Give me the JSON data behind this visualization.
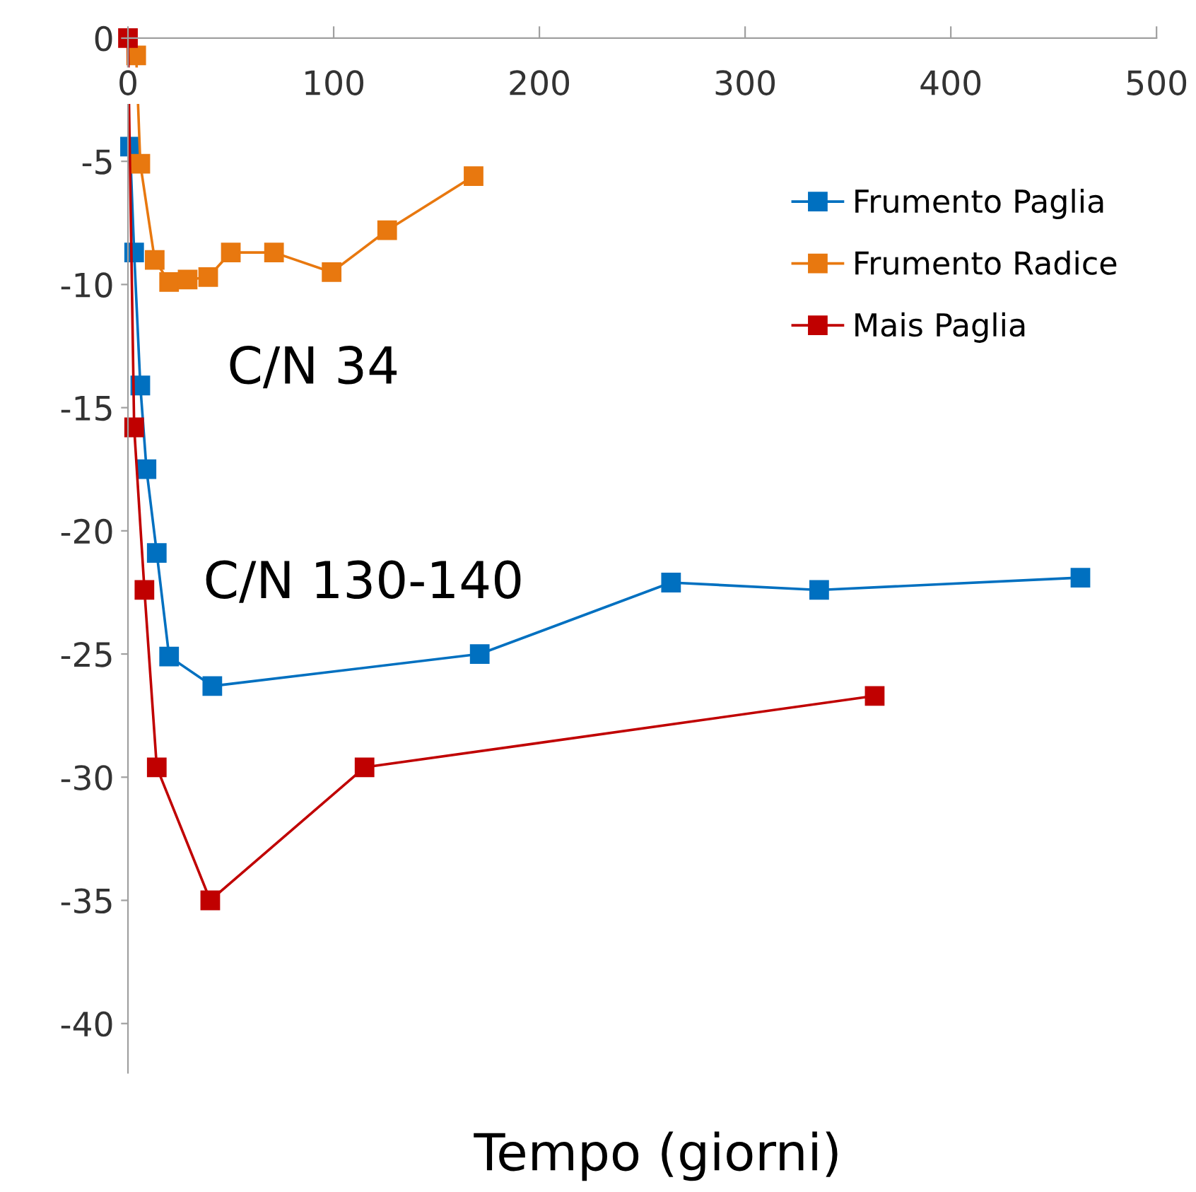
{
  "chart_data": {
    "type": "line",
    "xlabel": "Tempo (giorni)",
    "xlim": [
      0,
      500
    ],
    "xticks": [
      0,
      100,
      200,
      300,
      400,
      500
    ],
    "ylim": [
      -42,
      0
    ],
    "yticks": [
      0,
      -5,
      -10,
      -15,
      -20,
      -25,
      -30,
      -35,
      -40
    ],
    "grid": false,
    "legend": "right",
    "marker": "square",
    "line_style": "solid",
    "annotations": [
      "C/N 34",
      "C/N 130-140"
    ],
    "series": [
      {
        "name": "Frumento Paglia",
        "color": "#0070c0",
        "x": [
          1,
          3,
          6,
          9,
          14,
          20,
          41,
          171,
          264,
          336,
          463
        ],
        "values": [
          -4.4,
          -8.7,
          -14.1,
          -17.5,
          -20.9,
          -25.1,
          -26.3,
          -25.0,
          -22.1,
          -22.4,
          -21.9
        ]
      },
      {
        "name": "Frumento Radice",
        "color": "#e8780f",
        "x": [
          4,
          6,
          13,
          20,
          29,
          39,
          50,
          71,
          99,
          126,
          168
        ],
        "values": [
          -0.7,
          -5.1,
          -9.0,
          -9.9,
          -9.8,
          -9.7,
          -8.7,
          -8.7,
          -9.5,
          -7.8,
          -5.6
        ]
      },
      {
        "name": "Mais Paglia",
        "color": "#c00000",
        "x": [
          0,
          3,
          8,
          14,
          40,
          115,
          363
        ],
        "values": [
          0,
          -15.8,
          -22.4,
          -29.6,
          -35.0,
          -29.6,
          -26.7
        ]
      }
    ]
  }
}
